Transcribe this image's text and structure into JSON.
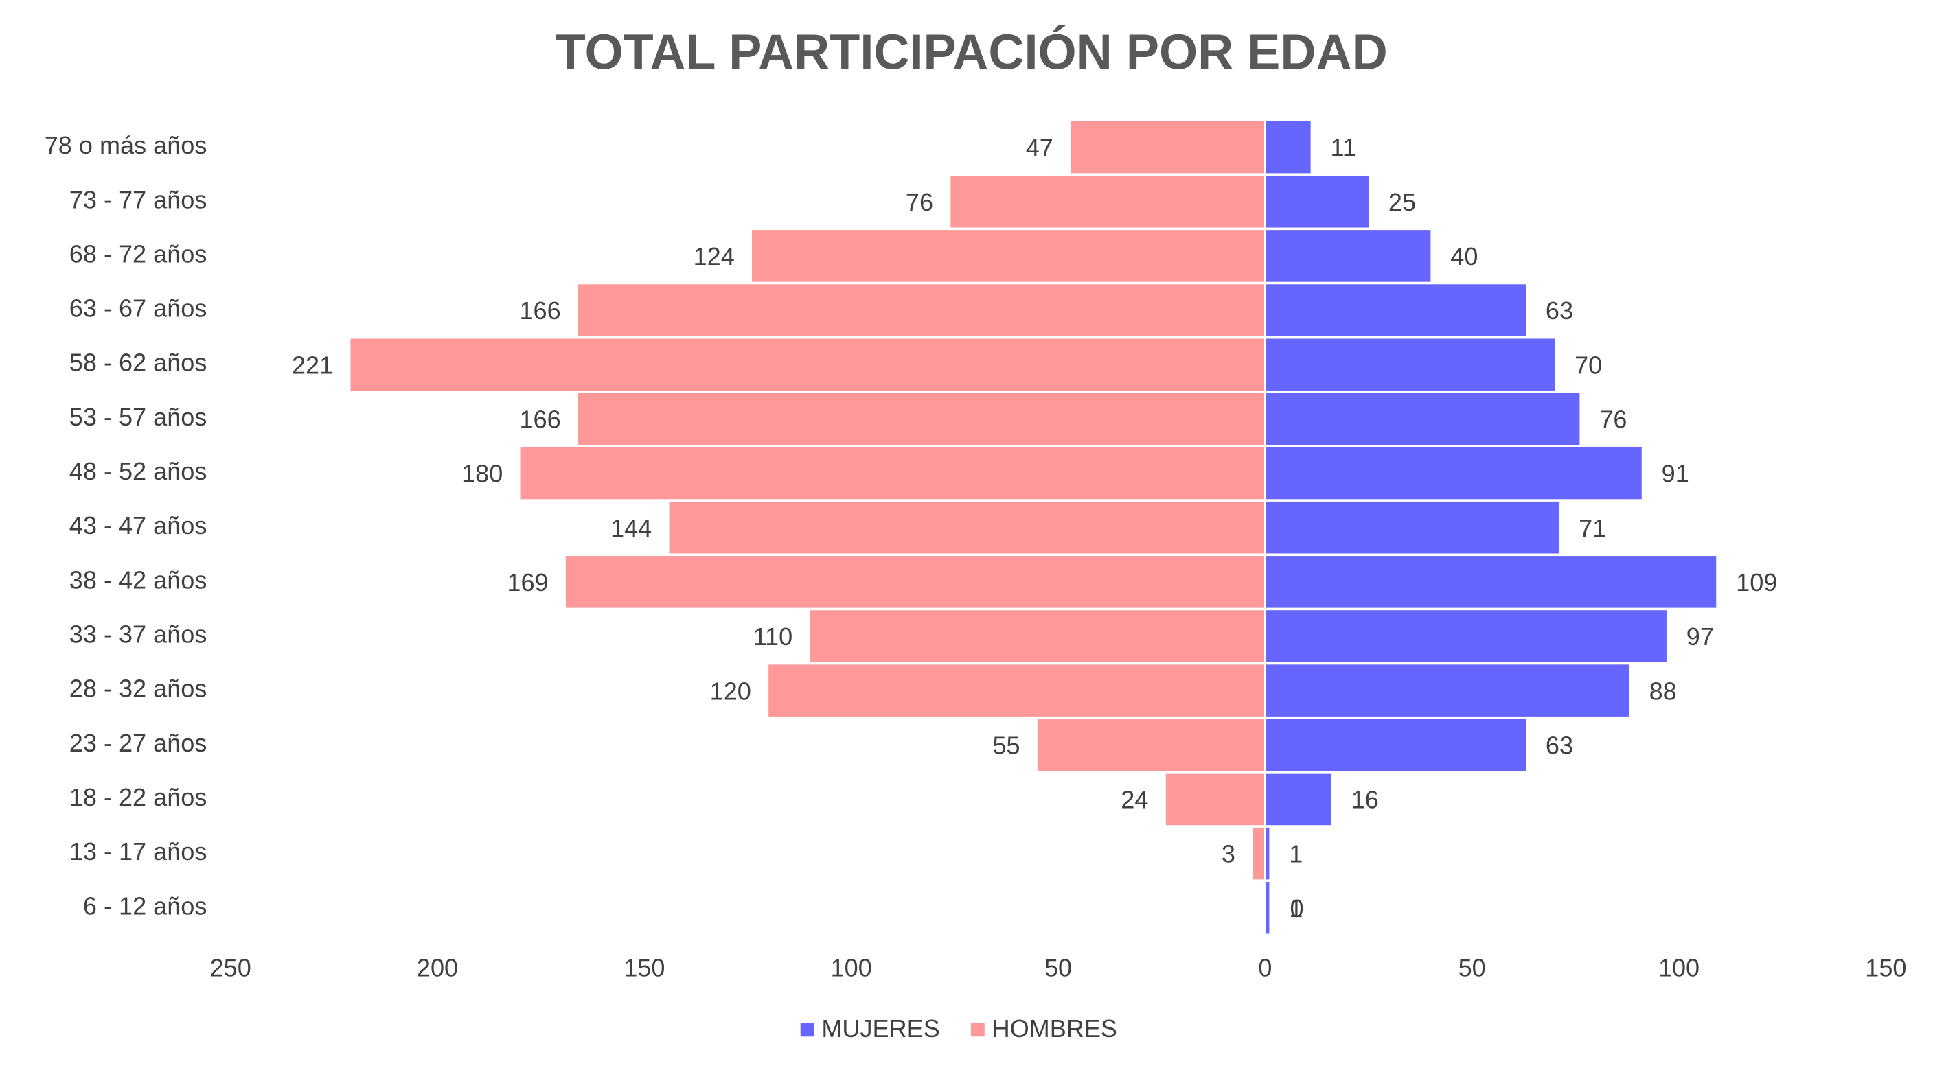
{
  "chart_data": {
    "type": "pyramid",
    "title": "TOTAL PARTICIPACIÓN POR EDAD",
    "categories": [
      "78 o más años",
      "73 - 77 años",
      "68 - 72 años",
      "63 - 67 años",
      "58 - 62 años",
      "53 - 57 años",
      "48 - 52 años",
      "43 - 47 años",
      "38 - 42 años",
      "33 - 37 años",
      "28 - 32 años",
      "23 - 27 años",
      "18 - 22 años",
      "13 - 17 años",
      "6 - 12 años"
    ],
    "series": [
      {
        "name": "MUJERES",
        "color": "#6666ff",
        "values": [
          11,
          25,
          40,
          63,
          70,
          76,
          91,
          71,
          109,
          97,
          88,
          63,
          16,
          1,
          1
        ]
      },
      {
        "name": "HOMBRES",
        "color": "#ff9999",
        "values": [
          47,
          76,
          124,
          166,
          221,
          166,
          180,
          144,
          169,
          110,
          120,
          55,
          24,
          3,
          0
        ]
      }
    ],
    "xlim": [
      -250,
      150
    ],
    "xticks": [
      {
        "value": -250,
        "label": "250"
      },
      {
        "value": -200,
        "label": "200"
      },
      {
        "value": -150,
        "label": "150"
      },
      {
        "value": -100,
        "label": "100"
      },
      {
        "value": -50,
        "label": "50"
      },
      0,
      50,
      100,
      150
    ]
  }
}
